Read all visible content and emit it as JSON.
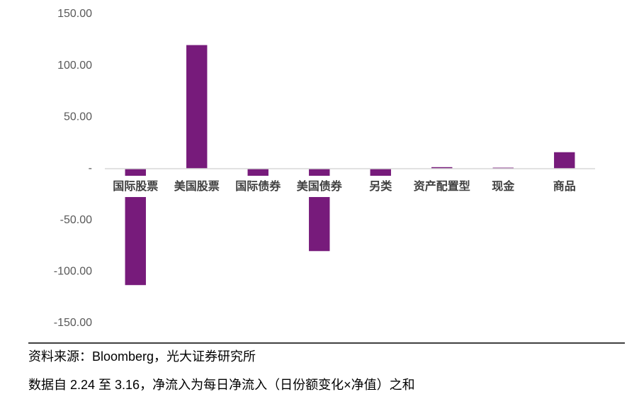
{
  "chart_data": {
    "type": "bar",
    "categories": [
      "国际股票",
      "美国股票",
      "国际债券",
      "美国债券",
      "另类",
      "资产配置型",
      "现金",
      "商品"
    ],
    "values": [
      -113,
      120,
      -7.5,
      -80,
      -7.5,
      1.5,
      1,
      16
    ],
    "color": "#771b7b",
    "ylim": [
      -150,
      150
    ],
    "yticks": [
      {
        "value": 150,
        "label": "150.00"
      },
      {
        "value": 100,
        "label": "100.00"
      },
      {
        "value": 50,
        "label": "50.00"
      },
      {
        "value": 0,
        "label": "-"
      },
      {
        "value": -50,
        "label": "-50.00"
      },
      {
        "value": -100,
        "label": "-100.00"
      },
      {
        "value": -150,
        "label": "-150.00"
      }
    ],
    "notes": [
      "资料来源：Bloomberg，光大证券研究所",
      "数据自 2.24 至 3.16，净流入为每日净流入（日份额变化×净值）之和"
    ]
  }
}
